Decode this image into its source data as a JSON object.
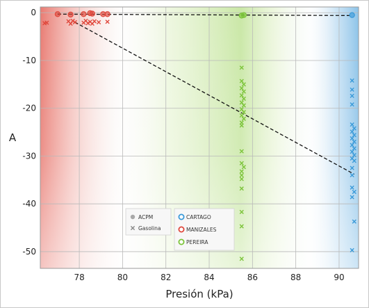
{
  "chart_data": {
    "type": "scatter",
    "xlabel": "Presión (kPa)",
    "ylabel": "A",
    "xlim": [
      76.2,
      90.9
    ],
    "ylim": [
      -53.5,
      1.2
    ],
    "xticks": [
      "78",
      "80",
      "82",
      "84",
      "86",
      "88",
      "90"
    ],
    "yticks": [
      "0",
      "-10",
      "-20",
      "-30",
      "-40",
      "-50"
    ],
    "grid": true,
    "legend_position": "bottom-center",
    "legend": {
      "fuel": [
        {
          "label": "ACPM",
          "marker": "circle",
          "color": "#a8a8a8"
        },
        {
          "label": "Gasolina",
          "marker": "x",
          "color": "#888888"
        }
      ],
      "city": [
        {
          "label": "CARTAGO",
          "color": "#3a9ad9"
        },
        {
          "label": "MANIZALES",
          "color": "#e0483c"
        },
        {
          "label": "PEREIRA",
          "color": "#7cc43a"
        }
      ]
    },
    "series": [
      {
        "name": "MANIZALES",
        "color": "#e0483c",
        "acpm": [
          [
            77.0,
            -0.3
          ],
          [
            77.6,
            -0.4
          ],
          [
            78.2,
            -0.3
          ],
          [
            78.5,
            -0.1
          ],
          [
            78.6,
            -0.2
          ],
          [
            79.1,
            -0.3
          ],
          [
            79.3,
            -0.3
          ]
        ],
        "gasolina": [
          [
            76.4,
            -2.2
          ],
          [
            76.5,
            -2.1
          ],
          [
            77.5,
            -1.8
          ],
          [
            77.6,
            -2.3
          ],
          [
            77.7,
            -1.7
          ],
          [
            77.8,
            -2.0
          ],
          [
            78.2,
            -2.1
          ],
          [
            78.3,
            -1.7
          ],
          [
            78.4,
            -2.2
          ],
          [
            78.5,
            -1.9
          ],
          [
            78.6,
            -2.3
          ],
          [
            78.7,
            -1.8
          ],
          [
            78.9,
            -2.0
          ],
          [
            79.3,
            -1.9
          ]
        ]
      },
      {
        "name": "PEREIRA",
        "color": "#7cc43a",
        "acpm": [
          [
            85.5,
            -0.6
          ],
          [
            85.6,
            -0.5
          ]
        ],
        "gasolina": [
          [
            85.5,
            -11.5
          ],
          [
            85.5,
            -14.3
          ],
          [
            85.6,
            -15.0
          ],
          [
            85.5,
            -15.8
          ],
          [
            85.6,
            -16.5
          ],
          [
            85.5,
            -17.3
          ],
          [
            85.6,
            -18.0
          ],
          [
            85.5,
            -18.8
          ],
          [
            85.6,
            -19.4
          ],
          [
            85.5,
            -20.2
          ],
          [
            85.6,
            -20.8
          ],
          [
            85.5,
            -21.5
          ],
          [
            85.6,
            -22.2
          ],
          [
            85.5,
            -23.0
          ],
          [
            85.5,
            -23.6
          ],
          [
            85.5,
            -29.0
          ],
          [
            85.5,
            -31.5
          ],
          [
            85.6,
            -32.3
          ],
          [
            85.5,
            -33.2
          ],
          [
            85.5,
            -34.0
          ],
          [
            85.5,
            -34.8
          ],
          [
            85.5,
            -36.8
          ],
          [
            85.5,
            -41.7
          ],
          [
            85.5,
            -44.7
          ],
          [
            85.5,
            -51.5
          ]
        ]
      },
      {
        "name": "CARTAGO",
        "color": "#3a9ad9",
        "acpm": [
          [
            90.6,
            -0.5
          ]
        ],
        "gasolina": [
          [
            90.6,
            -14.2
          ],
          [
            90.6,
            -16.1
          ],
          [
            90.6,
            -17.4
          ],
          [
            90.6,
            -19.2
          ],
          [
            90.6,
            -23.4
          ],
          [
            90.7,
            -24.2
          ],
          [
            90.6,
            -24.9
          ],
          [
            90.7,
            -25.6
          ],
          [
            90.6,
            -26.3
          ],
          [
            90.7,
            -27.0
          ],
          [
            90.6,
            -27.7
          ],
          [
            90.7,
            -28.4
          ],
          [
            90.6,
            -29.1
          ],
          [
            90.7,
            -29.8
          ],
          [
            90.6,
            -30.5
          ],
          [
            90.7,
            -31.0
          ],
          [
            90.6,
            -32.5
          ],
          [
            90.6,
            -34.0
          ],
          [
            90.6,
            -36.6
          ],
          [
            90.7,
            -37.5
          ],
          [
            90.6,
            -38.6
          ],
          [
            90.7,
            -43.7
          ],
          [
            90.6,
            -49.7
          ]
        ]
      }
    ],
    "reference_lines": [
      {
        "style": "dashed",
        "color": "#111111",
        "from": [
          77.0,
          -0.3
        ],
        "to": [
          90.6,
          -0.6
        ]
      },
      {
        "style": "dashed",
        "color": "#111111",
        "from": [
          77.8,
          -2.0
        ],
        "to": [
          90.7,
          -33.8
        ]
      }
    ]
  }
}
